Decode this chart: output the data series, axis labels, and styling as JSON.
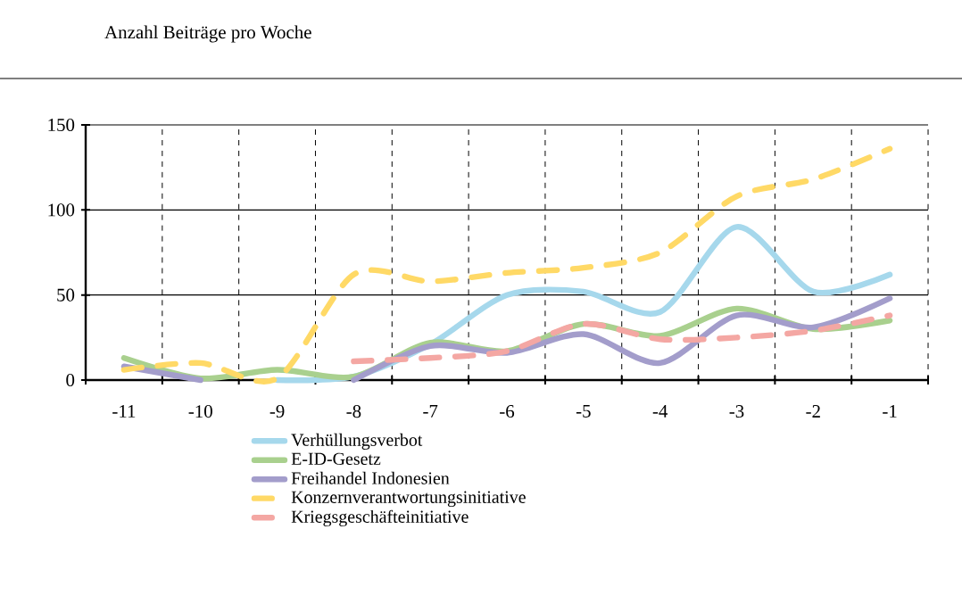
{
  "chart_data": {
    "type": "line",
    "title": "Anzahl Beiträge pro Woche",
    "categories": [
      "-11",
      "-10",
      "-9",
      "-8",
      "-7",
      "-6",
      "-5",
      "-4",
      "-3",
      "-2",
      "-1"
    ],
    "ylim": [
      0,
      150
    ],
    "yticks": [
      0,
      50,
      100,
      150
    ],
    "grid": true,
    "legend": "bottom",
    "series": [
      {
        "name": "Verhüllungsverbot",
        "color": "#a6d8ec",
        "line_style": "solid",
        "values": [
          null,
          null,
          0,
          2,
          21,
          50,
          52,
          40,
          90,
          52,
          62
        ]
      },
      {
        "name": "E-ID-Gesetz",
        "color": "#a9d08e",
        "line_style": "solid",
        "values": [
          13,
          1,
          6,
          2,
          22,
          17,
          33,
          26,
          42,
          30,
          35
        ]
      },
      {
        "name": "Freihandel Indonesien",
        "color": "#a39dcb",
        "line_style": "solid",
        "values": [
          8,
          0,
          null,
          0,
          20,
          16,
          27,
          10,
          38,
          31,
          48
        ]
      },
      {
        "name": "Konzernverantwortungsinitiative",
        "color": "#ffd966",
        "line_style": "dashed",
        "values": [
          6,
          10,
          1,
          62,
          58,
          63,
          66,
          75,
          108,
          118,
          136
        ]
      },
      {
        "name": "Kriegsgeschäfteinitiative",
        "color": "#f4a7a3",
        "line_style": "dashed",
        "values": [
          null,
          null,
          null,
          11,
          13,
          17,
          33,
          24,
          25,
          29,
          38
        ]
      }
    ]
  }
}
